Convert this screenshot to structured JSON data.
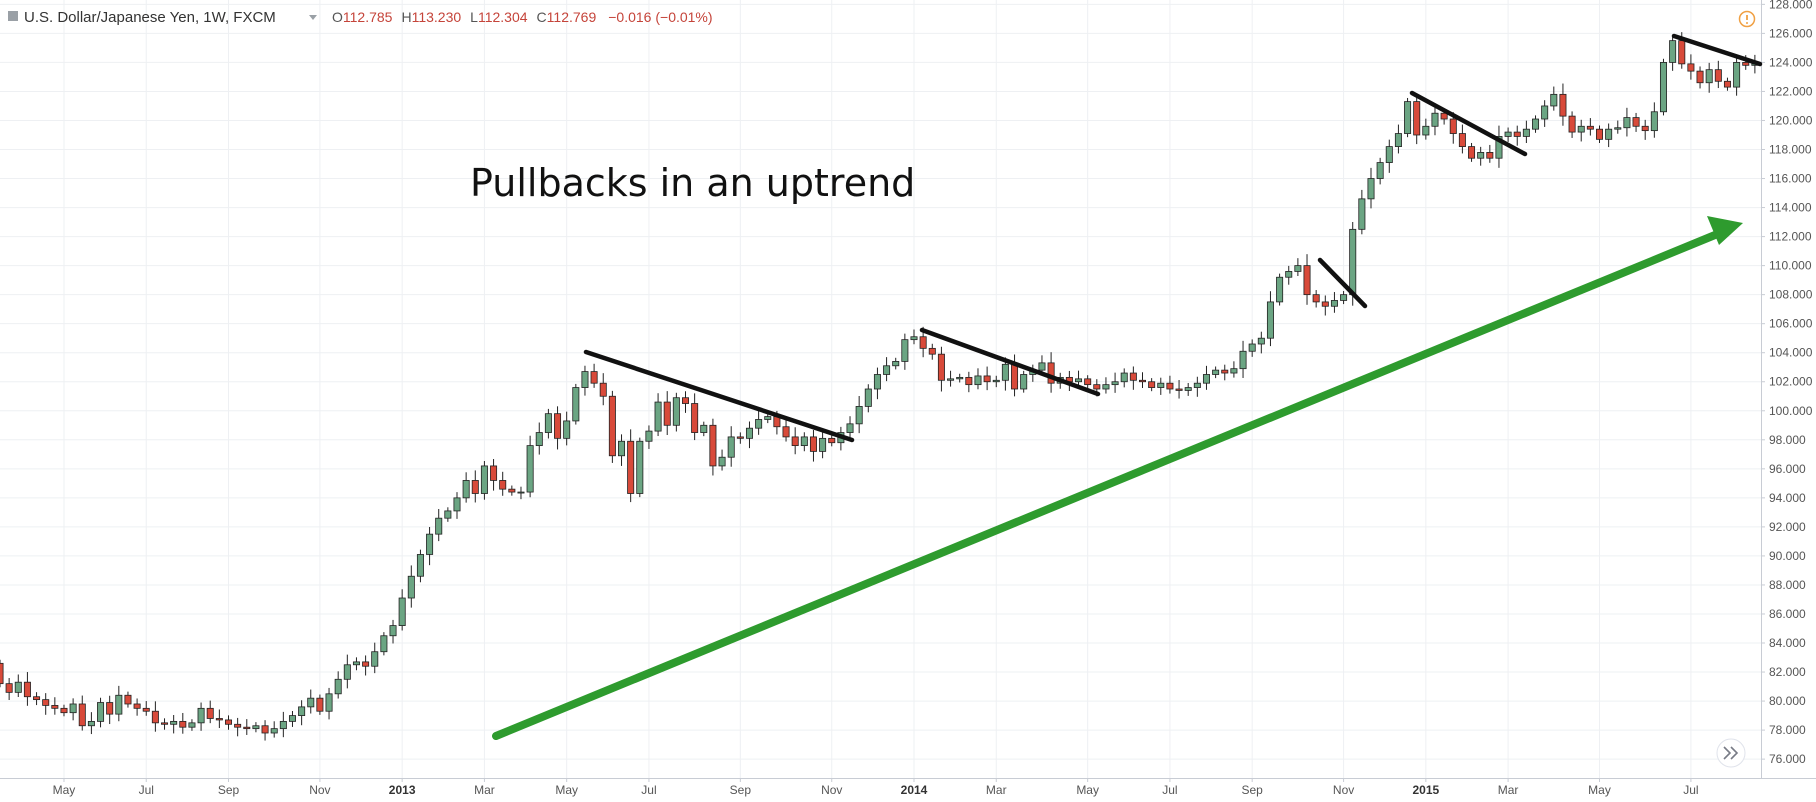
{
  "header": {
    "symbol": "U.S. Dollar/Japanese Yen, 1W, FXCM",
    "ohlc": [
      {
        "label": "O",
        "value": "112.785"
      },
      {
        "label": "H",
        "value": "113.230"
      },
      {
        "label": "L",
        "value": "112.304"
      },
      {
        "label": "C",
        "value": "112.769"
      }
    ],
    "change": "−0.016 (−0.01%)"
  },
  "chart_data": {
    "type": "candlestick",
    "annotation": "Pullbacks in an uptrend",
    "ylim": [
      74.7,
      128.3
    ],
    "y_ticks": [
      "76.000",
      "78.000",
      "80.000",
      "82.000",
      "84.000",
      "86.000",
      "88.000",
      "90.000",
      "92.000",
      "94.000",
      "96.000",
      "98.000",
      "100.000",
      "102.000",
      "104.000",
      "106.000",
      "108.000",
      "110.000",
      "112.000",
      "114.000",
      "116.000",
      "118.000",
      "120.000",
      "122.000",
      "124.000",
      "126.000",
      "128.000"
    ],
    "x_ticks": [
      {
        "label": "May",
        "bold": false,
        "week": 7
      },
      {
        "label": "Jul",
        "bold": false,
        "week": 16
      },
      {
        "label": "Sep",
        "bold": false,
        "week": 25
      },
      {
        "label": "Nov",
        "bold": false,
        "week": 35
      },
      {
        "label": "2013",
        "bold": true,
        "week": 44
      },
      {
        "label": "Mar",
        "bold": false,
        "week": 53
      },
      {
        "label": "May",
        "bold": false,
        "week": 62
      },
      {
        "label": "Jul",
        "bold": false,
        "week": 71
      },
      {
        "label": "Sep",
        "bold": false,
        "week": 81
      },
      {
        "label": "Nov",
        "bold": false,
        "week": 91
      },
      {
        "label": "2014",
        "bold": true,
        "week": 100
      },
      {
        "label": "Mar",
        "bold": false,
        "week": 109
      },
      {
        "label": "May",
        "bold": false,
        "week": 119
      },
      {
        "label": "Jul",
        "bold": false,
        "week": 128
      },
      {
        "label": "Sep",
        "bold": false,
        "week": 137
      },
      {
        "label": "Nov",
        "bold": false,
        "week": 147
      },
      {
        "label": "2015",
        "bold": true,
        "week": 156
      },
      {
        "label": "Mar",
        "bold": false,
        "week": 165
      },
      {
        "label": "May",
        "bold": false,
        "week": 175
      },
      {
        "label": "Jul",
        "bold": false,
        "week": 185
      }
    ],
    "closes": [
      81.2,
      80.6,
      81.3,
      80.3,
      80.1,
      79.7,
      79.5,
      79.2,
      79.8,
      78.3,
      78.6,
      79.9,
      79.1,
      80.4,
      79.8,
      79.5,
      79.3,
      78.5,
      78.4,
      78.6,
      78.2,
      78.5,
      79.5,
      78.8,
      78.7,
      78.4,
      78.2,
      78.1,
      78.3,
      77.8,
      78.1,
      78.6,
      79.0,
      79.6,
      80.2,
      79.3,
      80.5,
      81.5,
      82.5,
      82.7,
      82.4,
      83.4,
      84.5,
      85.2,
      87.1,
      88.6,
      90.1,
      91.5,
      92.6,
      93.1,
      94.0,
      95.2,
      94.3,
      96.2,
      95.2,
      94.6,
      94.4,
      94.4,
      97.6,
      98.5,
      99.8,
      98.1,
      99.3,
      101.6,
      102.7,
      101.9,
      101.0,
      96.9,
      97.9,
      94.3,
      97.9,
      98.6,
      100.6,
      99.0,
      100.9,
      100.5,
      98.5,
      99.0,
      96.2,
      96.8,
      98.2,
      98.1,
      98.8,
      99.4,
      99.6,
      98.9,
      98.2,
      97.6,
      98.2,
      97.2,
      98.1,
      97.8,
      98.5,
      99.1,
      100.3,
      101.5,
      102.5,
      103.1,
      103.4,
      104.9,
      105.1,
      104.3,
      103.9,
      102.1,
      102.2,
      102.3,
      101.8,
      102.4,
      102.0,
      102.1,
      103.2,
      101.5,
      102.5,
      102.8,
      103.3,
      101.9,
      102.3,
      102.0,
      102.2,
      101.8,
      101.5,
      101.8,
      102.0,
      102.6,
      102.1,
      102.0,
      101.6,
      101.9,
      101.5,
      101.4,
      101.6,
      101.9,
      102.5,
      102.8,
      102.6,
      102.9,
      104.1,
      104.6,
      105.0,
      107.5,
      109.2,
      109.6,
      110.0,
      108.0,
      107.5,
      107.2,
      107.6,
      108.0,
      112.5,
      114.6,
      116.0,
      117.1,
      118.2,
      119.1,
      121.3,
      119.0,
      119.6,
      120.5,
      120.1,
      119.1,
      118.2,
      117.4,
      117.8,
      117.4,
      118.9,
      119.2,
      118.9,
      119.4,
      120.1,
      121.0,
      121.8,
      120.3,
      119.2,
      119.6,
      119.4,
      118.7,
      119.4,
      119.5,
      120.2,
      119.6,
      119.3,
      120.6,
      124.0,
      125.5,
      123.9,
      123.4,
      122.6,
      123.5,
      122.7,
      122.3,
      124.0,
      123.8,
      123.9
    ]
  }
}
